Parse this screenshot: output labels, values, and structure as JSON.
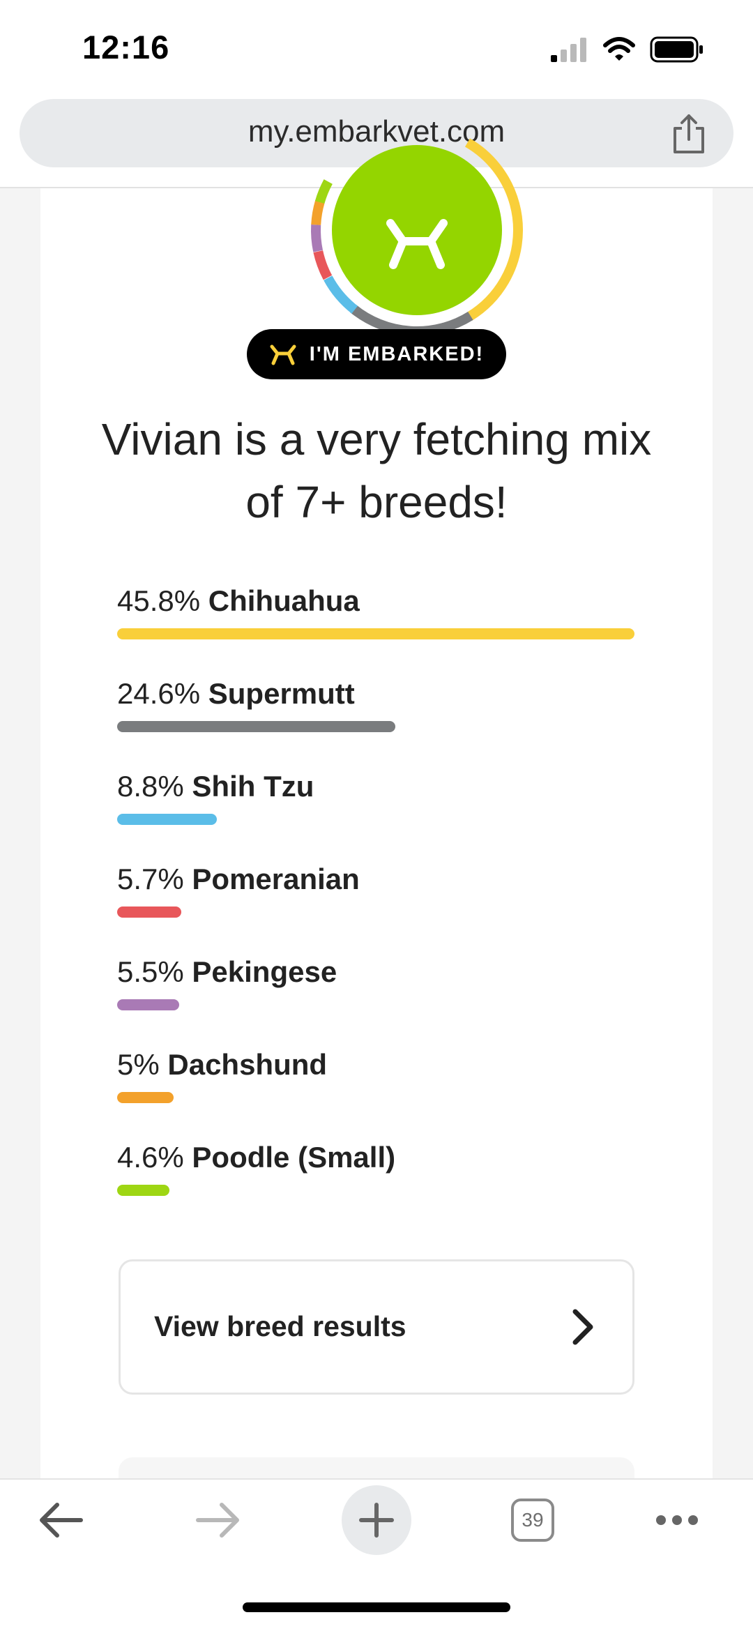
{
  "status_bar": {
    "time": "12:16"
  },
  "browser": {
    "url": "my.embarkvet.com",
    "tab_count": "39"
  },
  "badge": {
    "label": "I'M EMBARKED!"
  },
  "headline": "Vivian is a very fetching mix of 7+ breeds!",
  "breeds": [
    {
      "pct_label": "45.8%",
      "name": "Chihuahua",
      "percent": 45.8,
      "color": "#f9cf3a"
    },
    {
      "pct_label": "24.6%",
      "name": "Supermutt",
      "percent": 24.6,
      "color": "#7a7c7e"
    },
    {
      "pct_label": "8.8%",
      "name": "Shih Tzu",
      "percent": 8.8,
      "color": "#5bbde8"
    },
    {
      "pct_label": "5.7%",
      "name": "Pomeranian",
      "percent": 5.7,
      "color": "#e8575a"
    },
    {
      "pct_label": "5.5%",
      "name": "Pekingese",
      "percent": 5.5,
      "color": "#a97ab5"
    },
    {
      "pct_label": "5%",
      "name": "Dachshund",
      "percent": 5,
      "color": "#f3a12b"
    },
    {
      "pct_label": "4.6%",
      "name": "Poodle (Small)",
      "percent": 4.6,
      "color": "#9ed613"
    }
  ],
  "results_button": {
    "label": "View breed results"
  },
  "colors": {
    "logo_green": "#94d500",
    "badge_bg": "#000000",
    "url_bar_bg": "#e8eaec"
  },
  "icons": [
    "signal-icon",
    "wifi-icon",
    "battery-icon",
    "share-icon",
    "embark-logo-icon",
    "chevron-right-icon",
    "back-arrow-icon",
    "forward-arrow-icon",
    "plus-icon",
    "tabs-icon",
    "more-icon"
  ]
}
